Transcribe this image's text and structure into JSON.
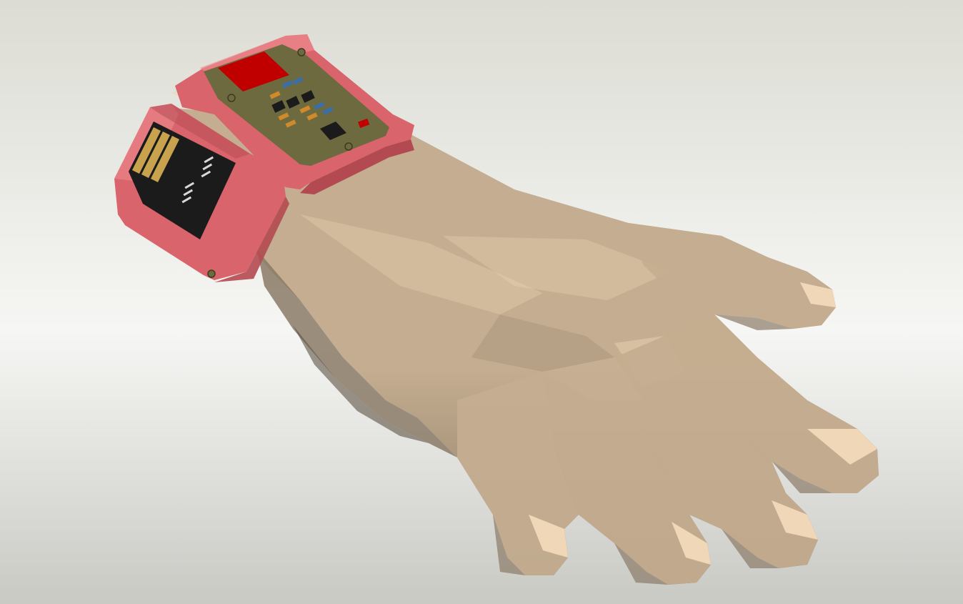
{
  "scene": {
    "subject": "wrist-worn-pcb-device-on-low-poly-hand",
    "colors": {
      "bg_top": "#dcdcd4",
      "bg_mid": "#f6f6f4",
      "bg_bottom": "#c9c9c4",
      "skin_light": "#efd7b8",
      "skin_mid": "#c4ad90",
      "skin_shadow": "#8a7a66",
      "skin_dark": "#5e5243",
      "case_pink": "#d9646b",
      "case_pink_light": "#ec8a8e",
      "case_pink_dark": "#b34a51",
      "pcb_olive": "#6e6a3f",
      "chip_black": "#1b1b1b",
      "red_component": "#c00000",
      "gold_contact": "#c9a24e",
      "blue_smd": "#3a6ea5",
      "orange_smd": "#d08a2a"
    }
  }
}
